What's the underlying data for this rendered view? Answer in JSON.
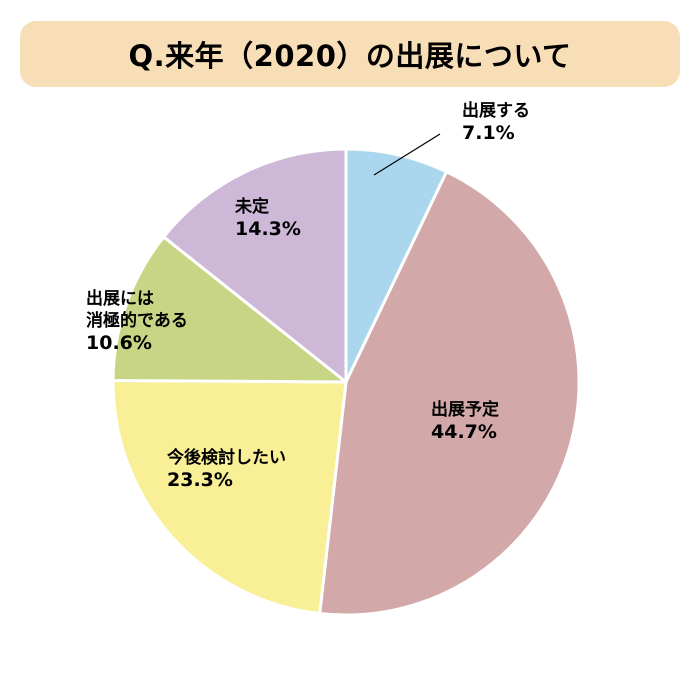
{
  "title": "Q.来年（2020）の出展について",
  "colors": {
    "banner": "#f8deb6",
    "slice_stroke": "#ffffff",
    "leader_line": "#000000"
  },
  "chart_data": {
    "type": "pie",
    "title": "Q.来年（2020）の出展について",
    "start_angle_deg": 0,
    "direction": "clockwise",
    "slices": [
      {
        "label_lines": [
          "出展する"
        ],
        "value_label": "7.1%",
        "value": 7.1,
        "color": "#aad7ee"
      },
      {
        "label_lines": [
          "出展予定"
        ],
        "value_label": "44.7%",
        "value": 44.7,
        "color": "#d2a8a8"
      },
      {
        "label_lines": [
          "今後検討したい"
        ],
        "value_label": "23.3%",
        "value": 23.3,
        "color": "#f8ef97"
      },
      {
        "label_lines": [
          "出展には",
          "消極的である"
        ],
        "value_label": "10.6%",
        "value": 10.6,
        "color": "#c7d584"
      },
      {
        "label_lines": [
          "未定"
        ],
        "value_label": "14.3%",
        "value": 14.3,
        "color": "#cdb8d7"
      }
    ]
  }
}
